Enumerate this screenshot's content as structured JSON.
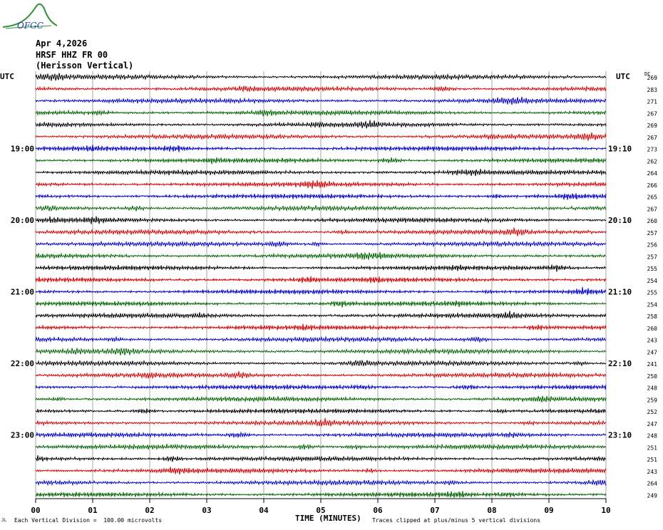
{
  "logo_text": "OFGC",
  "header": {
    "date": "Apr 4,2026",
    "station": "HRSF HHZ FR 00",
    "description": "(Herisson Vertical)"
  },
  "axis": {
    "left_unit": "UTC",
    "right_unit": "UTC",
    "dc_label": "DC",
    "xlabel": "TIME (MINUTES)"
  },
  "footer": {
    "left_mark": "JL",
    "scale_note": "Each Vertical Division =  100.00 microvolts",
    "clip_note": "Traces clipped at plus/minus 5 vertical divisions"
  },
  "colors": {
    "trace_cycle": [
      "#000000",
      "#d40000",
      "#0000c8",
      "#006400"
    ],
    "grid": "#808080"
  },
  "chart_data": {
    "type": "line",
    "title": "",
    "xlabel": "TIME (MINUTES)",
    "xlim": [
      0,
      10
    ],
    "x_ticks": [
      "00",
      "01",
      "02",
      "03",
      "04",
      "05",
      "06",
      "07",
      "08",
      "09",
      "10"
    ],
    "minutes_per_trace": 10,
    "left_hour_labels": [
      {
        "trace": 6,
        "label": "19:00"
      },
      {
        "trace": 12,
        "label": "20:00"
      },
      {
        "trace": 18,
        "label": "21:00"
      },
      {
        "trace": 24,
        "label": "22:00"
      },
      {
        "trace": 30,
        "label": "23:00"
      }
    ],
    "right_hour_labels": [
      {
        "trace": 6,
        "label": "19:10"
      },
      {
        "trace": 12,
        "label": "20:10"
      },
      {
        "trace": 18,
        "label": "21:10"
      },
      {
        "trace": 24,
        "label": "22:10"
      },
      {
        "trace": 30,
        "label": "23:10"
      }
    ],
    "dc_offsets": [
      269,
      283,
      271,
      267,
      269,
      267,
      273,
      262,
      264,
      266,
      265,
      267,
      260,
      257,
      256,
      257,
      255,
      254,
      255,
      254,
      258,
      260,
      243,
      247,
      241,
      250,
      248,
      259,
      252,
      247,
      248,
      251,
      251,
      243,
      264,
      249
    ],
    "trace_count": 36,
    "vertical_division_microvolts": 100.0,
    "clip_divisions": 5
  }
}
